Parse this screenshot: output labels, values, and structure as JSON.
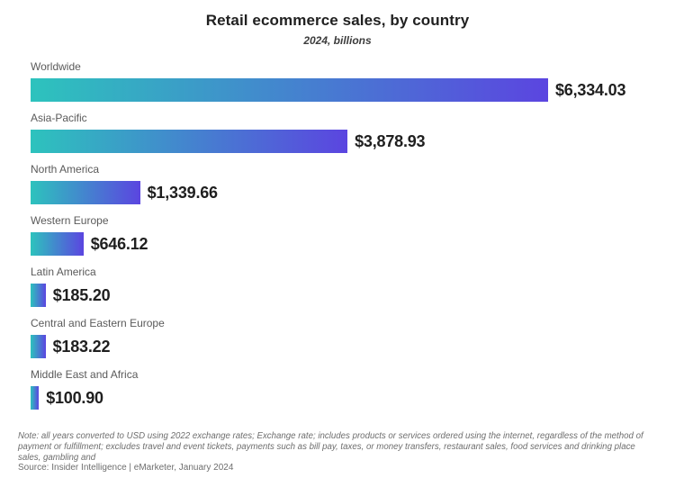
{
  "header": {
    "title": "Retail ecommerce sales, by country",
    "subtitle": "2024, billions"
  },
  "chart_data": {
    "type": "bar",
    "orientation": "horizontal",
    "title": "Retail ecommerce sales, by country",
    "subtitle": "2024, billions",
    "categories": [
      "Worldwide",
      "Asia-Pacific",
      "North America",
      "Western Europe",
      "Latin America",
      "Central and Eastern Europe",
      "Middle East and Africa"
    ],
    "values": [
      6334.03,
      3878.93,
      1339.66,
      646.12,
      185.2,
      183.22,
      100.9
    ],
    "value_labels": [
      "$6,334.03",
      "$3,878.93",
      "$1,339.66",
      "$646.12",
      "$185.20",
      "$183.22",
      "$100.90"
    ],
    "xlabel": "",
    "ylabel": "",
    "xlim": [
      0,
      6334.03
    ],
    "grid": false,
    "legend": "none",
    "bar_gradient": [
      "#2dc3bd",
      "#5b45e0"
    ]
  },
  "footer": {
    "note": "Note: all years converted to USD using 2022 exchange rates; Exchange rate; includes products or services ordered using the internet, regardless of the method of payment or fulfillment; excludes travel and event tickets, payments such as bill pay, taxes, or money transfers, restaurant sales, food services and drinking place sales, gambling and",
    "source": "Source: Insider Intelligence | eMarketer, January 2024"
  }
}
